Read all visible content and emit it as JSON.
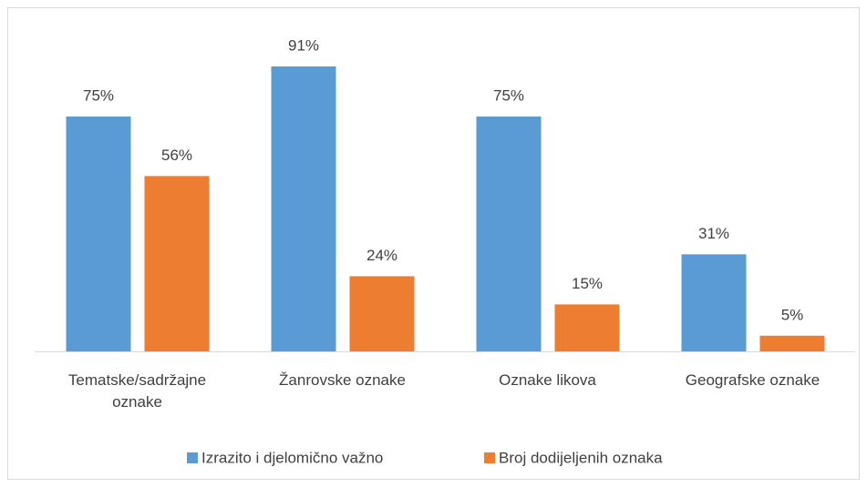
{
  "chart_data": {
    "type": "bar",
    "categories": [
      "Tematske/sadržajne oznake",
      "Žanrovske oznake",
      "Oznake likova",
      "Geografske oznake"
    ],
    "series": [
      {
        "name": "Izrazito i djelomično važno",
        "color": "#5b9bd5",
        "values": [
          75,
          91,
          75,
          31
        ],
        "value_labels": [
          "75%",
          "91%",
          "75%",
          "31%"
        ]
      },
      {
        "name": "Broj dodijeljenih oznaka",
        "color": "#ed7d31",
        "values": [
          56,
          24,
          15,
          5
        ],
        "value_labels": [
          "56%",
          "24%",
          "15%",
          "5%"
        ]
      }
    ],
    "legend": "bottom"
  }
}
